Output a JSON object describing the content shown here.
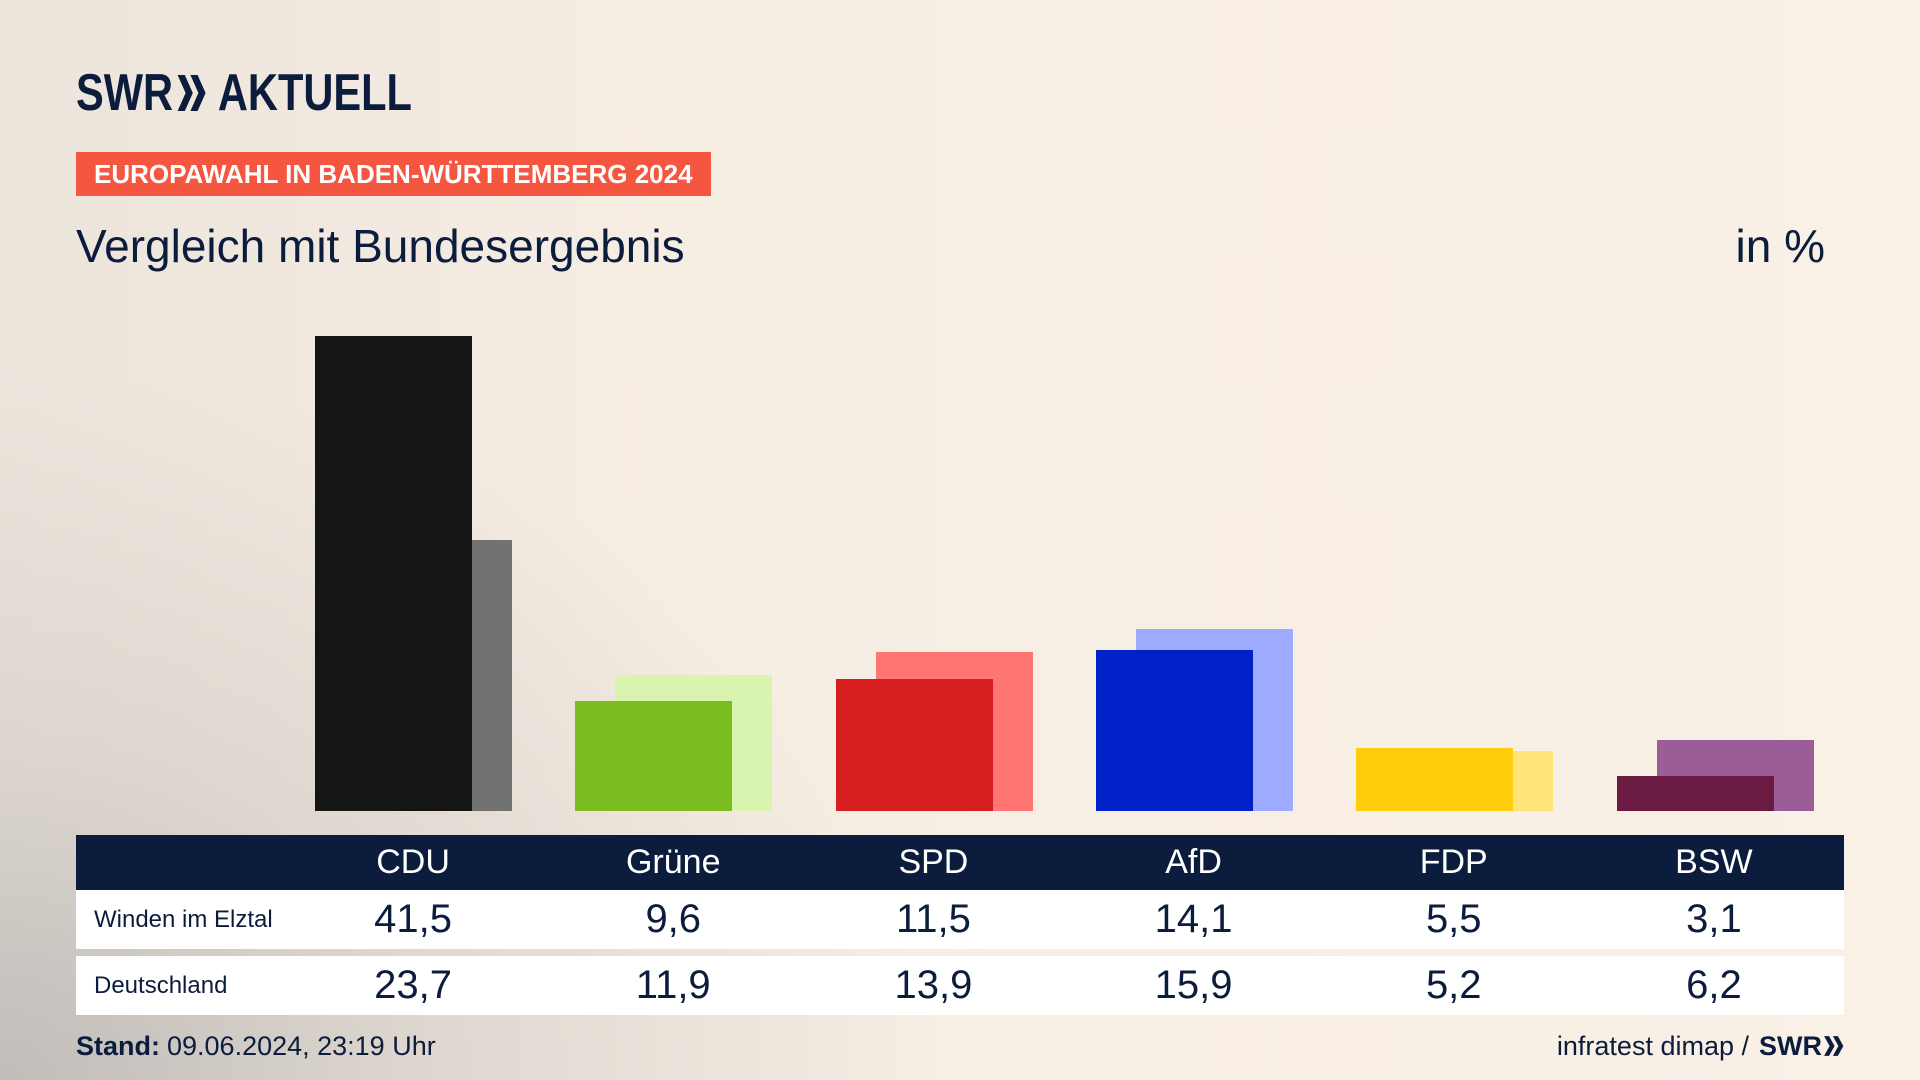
{
  "theme": {
    "navy": "#0c1c3c",
    "accent": "#f4563f",
    "background": "#f8efe5"
  },
  "logo": {
    "brand": "SWR",
    "product": "AKTUELL"
  },
  "badge": "EUROPAWAHL IN BADEN-WÜRTTEMBERG 2024",
  "chart_data": {
    "type": "bar",
    "title": "Vergleich mit Bundesergebnis",
    "unit": "in %",
    "categories": [
      "CDU",
      "Grüne",
      "SPD",
      "AfD",
      "FDP",
      "BSW"
    ],
    "series": [
      {
        "name": "Winden im Elztal",
        "values": [
          41.5,
          9.6,
          11.5,
          14.1,
          5.5,
          3.1
        ],
        "value_labels": [
          "41,5",
          "9,6",
          "11,5",
          "14,1",
          "5,5",
          "3,1"
        ],
        "colors": [
          "#151515",
          "#79bd1e",
          "#d61e1e",
          "#0020c8",
          "#ffce0c",
          "#6b1a42"
        ]
      },
      {
        "name": "Deutschland",
        "values": [
          23.7,
          11.9,
          13.9,
          15.9,
          5.2,
          6.2
        ],
        "value_labels": [
          "23,7",
          "11,9",
          "13,9",
          "15,9",
          "5,2",
          "6,2"
        ],
        "colors": [
          "#737272",
          "#d8f4ae",
          "#fe7571",
          "#9eaaff",
          "#ffe47a",
          "#9b5d98"
        ]
      }
    ],
    "grid": false
  },
  "footer": {
    "stand_label": "Stand:",
    "stand_value": "09.06.2024, 23:19 Uhr",
    "source": "infratest dimap /",
    "source_logo": "SWR"
  }
}
